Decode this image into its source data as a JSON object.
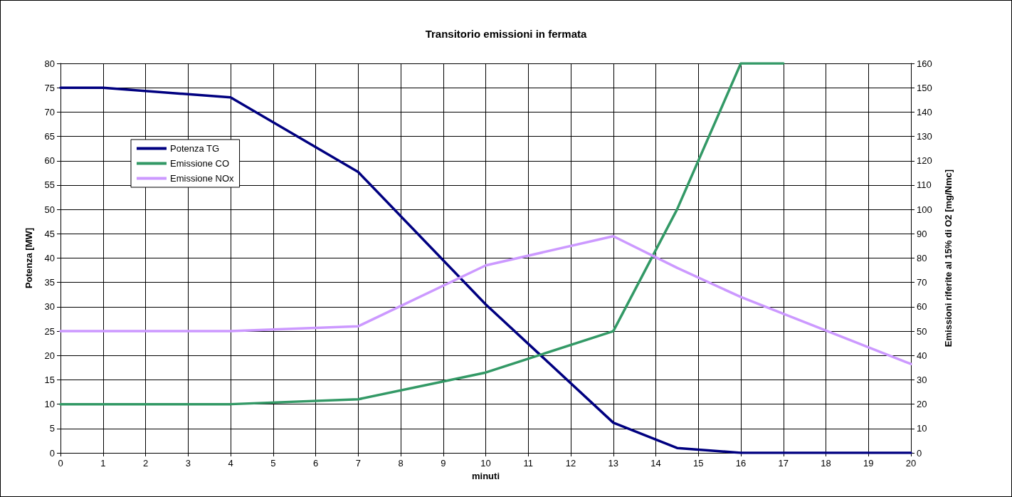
{
  "chart_data": {
    "type": "line",
    "title": "Transitorio emissioni in fermata",
    "xlabel": "minuti",
    "ylabel": "Potenza [MW]",
    "y2label": "Emissioni riferite al 15% di O2 [mg/Nmc]",
    "xlim": [
      0,
      20
    ],
    "xticks": [
      0,
      1,
      2,
      3,
      4,
      5,
      6,
      7,
      8,
      9,
      10,
      11,
      12,
      13,
      14,
      15,
      16,
      17,
      18,
      19,
      20
    ],
    "ylim": [
      0,
      80
    ],
    "yticks": [
      0,
      5,
      10,
      15,
      20,
      25,
      30,
      35,
      40,
      45,
      50,
      55,
      60,
      65,
      70,
      75,
      80
    ],
    "y2lim": [
      0,
      160
    ],
    "y2ticks": [
      0,
      10,
      20,
      30,
      40,
      50,
      60,
      70,
      80,
      90,
      100,
      110,
      120,
      130,
      140,
      150,
      160
    ],
    "grid": true,
    "legend": "top left",
    "marker": "none",
    "line_style": "solid",
    "series": [
      {
        "name": "Potenza TG",
        "color": "#000080",
        "x": [
          0,
          1,
          4,
          7,
          10,
          13,
          14.5,
          16,
          20
        ],
        "values": [
          75,
          75,
          73,
          57.7,
          30.5,
          6.2,
          1,
          0,
          0
        ]
      },
      {
        "name": "Emissione CO",
        "color": "#339966",
        "axis": "y2",
        "x": [
          0,
          4,
          7,
          10,
          13,
          14.5,
          16,
          17
        ],
        "values": [
          20,
          20,
          22,
          33,
          50,
          100,
          160,
          160
        ]
      },
      {
        "name": "Emissione NOx",
        "color": "#cc99ff",
        "axis": "y2",
        "x": [
          0,
          4,
          7,
          10,
          13,
          14.5,
          16,
          20
        ],
        "values": [
          50,
          50,
          52,
          77,
          89,
          76,
          64,
          36.5
        ]
      }
    ]
  }
}
